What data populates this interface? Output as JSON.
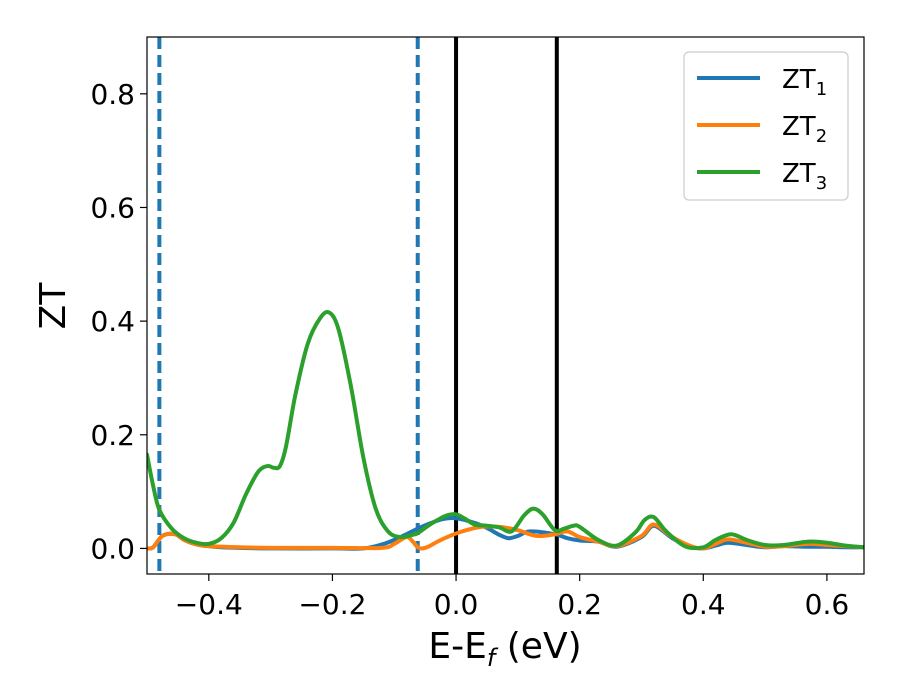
{
  "chart_data": {
    "type": "line",
    "xlabel": "E-E_f (eV)",
    "ylabel": "ZT",
    "xlim": [
      -0.5,
      0.66
    ],
    "ylim": [
      -0.045,
      0.9
    ],
    "xticks": [
      -0.4,
      -0.2,
      0.0,
      0.2,
      0.4,
      0.6
    ],
    "xtick_labels": [
      "−0.4",
      "−0.2",
      "0.0",
      "0.2",
      "0.4",
      "0.6"
    ],
    "yticks": [
      0.0,
      0.2,
      0.4,
      0.6,
      0.8
    ],
    "ytick_labels": [
      "0.0",
      "0.2",
      "0.4",
      "0.6",
      "0.8"
    ],
    "legend_position": "top-right",
    "vlines": [
      {
        "x": -0.48,
        "style": "dashed",
        "color": "#1f77b4"
      },
      {
        "x": -0.062,
        "style": "dashed",
        "color": "#1f77b4"
      },
      {
        "x": 0.0,
        "style": "solid",
        "color": "#000000"
      },
      {
        "x": 0.163,
        "style": "solid",
        "color": "#000000"
      }
    ],
    "series": [
      {
        "name": "ZT1",
        "label_base": "ZT",
        "label_sub": "1",
        "color": "#1f77b4",
        "x": [
          -0.5,
          -0.49,
          -0.475,
          -0.455,
          -0.44,
          -0.42,
          -0.4,
          -0.38,
          -0.35,
          -0.3,
          -0.2,
          -0.15,
          -0.12,
          -0.1,
          -0.08,
          -0.062,
          -0.04,
          -0.02,
          0.0,
          0.03,
          0.05,
          0.07,
          0.085,
          0.1,
          0.12,
          0.16,
          0.18,
          0.2,
          0.23,
          0.26,
          0.3,
          0.32,
          0.35,
          0.38,
          0.4,
          0.42,
          0.44,
          0.47,
          0.5,
          0.53,
          0.57,
          0.6,
          0.63,
          0.66
        ],
        "y": [
          0.0,
          0.002,
          0.022,
          0.025,
          0.015,
          0.007,
          0.004,
          0.002,
          0.001,
          0.0,
          0.0,
          0.0,
          0.007,
          0.015,
          0.025,
          0.035,
          0.045,
          0.052,
          0.053,
          0.045,
          0.036,
          0.024,
          0.018,
          0.022,
          0.03,
          0.025,
          0.018,
          0.014,
          0.012,
          0.003,
          0.02,
          0.04,
          0.018,
          0.003,
          0.0,
          0.005,
          0.01,
          0.006,
          0.002,
          0.004,
          0.003,
          0.003,
          0.002,
          0.002
        ]
      },
      {
        "name": "ZT2",
        "label_base": "ZT",
        "label_sub": "2",
        "color": "#ff7f0e",
        "x": [
          -0.5,
          -0.49,
          -0.475,
          -0.455,
          -0.44,
          -0.42,
          -0.4,
          -0.35,
          -0.3,
          -0.2,
          -0.12,
          -0.1,
          -0.08,
          -0.07,
          -0.062,
          -0.055,
          -0.045,
          -0.03,
          -0.01,
          0.01,
          0.04,
          0.07,
          0.1,
          0.13,
          0.16,
          0.18,
          0.2,
          0.23,
          0.26,
          0.3,
          0.32,
          0.35,
          0.38,
          0.4,
          0.42,
          0.44,
          0.47,
          0.5,
          0.53,
          0.57,
          0.6,
          0.63,
          0.66
        ],
        "y": [
          0.0,
          0.002,
          0.022,
          0.025,
          0.015,
          0.007,
          0.004,
          0.002,
          0.001,
          0.001,
          0.001,
          0.008,
          0.02,
          0.012,
          0.002,
          0.0,
          0.003,
          0.012,
          0.022,
          0.03,
          0.038,
          0.038,
          0.032,
          0.022,
          0.025,
          0.03,
          0.02,
          0.012,
          0.004,
          0.022,
          0.042,
          0.02,
          0.004,
          0.0,
          0.008,
          0.016,
          0.01,
          0.003,
          0.004,
          0.008,
          0.006,
          0.004,
          0.002
        ]
      },
      {
        "name": "ZT3",
        "label_base": "ZT",
        "label_sub": "3",
        "color": "#2ca02c",
        "x": [
          -0.5,
          -0.49,
          -0.48,
          -0.46,
          -0.44,
          -0.42,
          -0.4,
          -0.38,
          -0.36,
          -0.34,
          -0.32,
          -0.305,
          -0.295,
          -0.285,
          -0.275,
          -0.26,
          -0.24,
          -0.22,
          -0.205,
          -0.19,
          -0.17,
          -0.15,
          -0.13,
          -0.11,
          -0.09,
          -0.07,
          -0.062,
          -0.045,
          -0.03,
          -0.015,
          0.0,
          0.015,
          0.03,
          0.05,
          0.07,
          0.09,
          0.11,
          0.125,
          0.14,
          0.16,
          0.175,
          0.19,
          0.2,
          0.23,
          0.26,
          0.29,
          0.305,
          0.32,
          0.34,
          0.37,
          0.4,
          0.42,
          0.445,
          0.47,
          0.5,
          0.53,
          0.57,
          0.6,
          0.63,
          0.66
        ],
        "y": [
          0.165,
          0.11,
          0.068,
          0.035,
          0.018,
          0.01,
          0.008,
          0.018,
          0.045,
          0.095,
          0.135,
          0.145,
          0.142,
          0.145,
          0.18,
          0.27,
          0.36,
          0.405,
          0.415,
          0.385,
          0.285,
          0.16,
          0.07,
          0.03,
          0.02,
          0.024,
          0.027,
          0.04,
          0.05,
          0.058,
          0.06,
          0.052,
          0.042,
          0.04,
          0.037,
          0.03,
          0.058,
          0.07,
          0.06,
          0.032,
          0.035,
          0.04,
          0.038,
          0.015,
          0.005,
          0.028,
          0.05,
          0.055,
          0.03,
          0.004,
          0.002,
          0.015,
          0.025,
          0.015,
          0.006,
          0.006,
          0.012,
          0.01,
          0.005,
          0.002
        ]
      }
    ]
  }
}
